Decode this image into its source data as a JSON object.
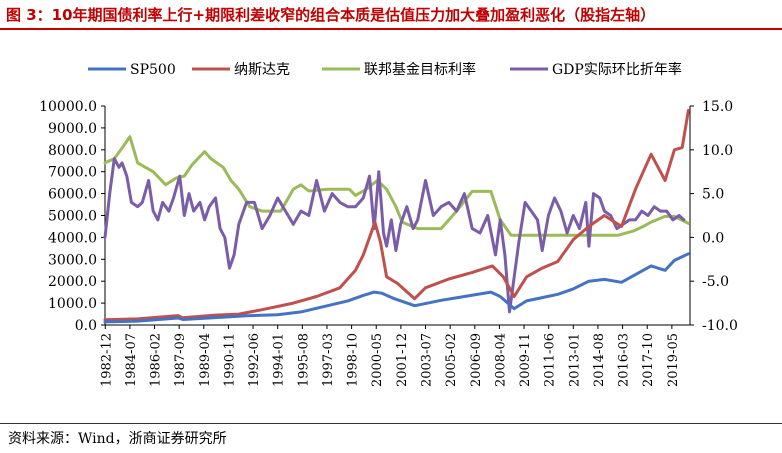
{
  "header": {
    "title": "图 3：10年期国债利率上行+期限利差收窄的组合本质是估值压力加大叠加盈利恶化（股指左轴）"
  },
  "footer": {
    "source": "资料来源：Wind，浙商证券研究所"
  },
  "colors": {
    "sp500": "#4472c4",
    "nasdaq": "#c0504d",
    "fedfunds": "#9bbb59",
    "gdp": "#7b5ca8",
    "title": "#c00000"
  },
  "chart_data": {
    "type": "line",
    "title": "10年期国债利率上行+期限利差收窄的组合本质是估值压力加大叠加盈利恶化（股指左轴）",
    "legend_position": "top",
    "x_tick_labels": [
      "1982-12",
      "1984-07",
      "1986-02",
      "1987-09",
      "1989-04",
      "1990-11",
      "1992-06",
      "1994-01",
      "1995-08",
      "1997-03",
      "1998-10",
      "2000-05",
      "2001-12",
      "2003-07",
      "2005-02",
      "2006-09",
      "2008-04",
      "2009-11",
      "2011-06",
      "2013-01",
      "2014-08",
      "2016-03",
      "2017-10",
      "2019-05"
    ],
    "x_range": [
      1982.9,
      2020.5
    ],
    "y_left": {
      "min": 0,
      "max": 10000,
      "ticks": [
        "0.0",
        "1000.0",
        "2000.0",
        "3000.0",
        "4000.0",
        "5000.0",
        "6000.0",
        "7000.0",
        "8000.0",
        "9000.0",
        "10000.0"
      ]
    },
    "y_right": {
      "min": -10,
      "max": 15,
      "ticks": [
        "-10.0",
        "-5.0",
        "0.0",
        "5.0",
        "10.0",
        "15.0"
      ]
    },
    "series": [
      {
        "name": "SP500",
        "color": "#4472c4",
        "axis": "left",
        "x": [
          1982.9,
          1985,
          1987.6,
          1987.9,
          1990,
          1992,
          1994,
          1995.5,
          1997,
          1998.5,
          1999.5,
          2000.2,
          2000.7,
          2001.5,
          2002.8,
          2003.3,
          2004.5,
          2006,
          2007.7,
          2008.3,
          2009.2,
          2010,
          2011,
          2012,
          2013,
          2014,
          2015,
          2016.1,
          2017,
          2018,
          2018.9,
          2019.5,
          2020.4
        ],
        "y": [
          140,
          180,
          320,
          250,
          340,
          420,
          470,
          600,
          850,
          1100,
          1350,
          1500,
          1450,
          1200,
          880,
          950,
          1130,
          1300,
          1500,
          1300,
          750,
          1100,
          1250,
          1400,
          1650,
          2000,
          2080,
          1950,
          2300,
          2700,
          2500,
          2950,
          3250
        ]
      },
      {
        "name": "纳斯达克",
        "color": "#c0504d",
        "axis": "left",
        "x": [
          1982.9,
          1985,
          1987.6,
          1987.9,
          1990,
          1991.5,
          1993,
          1995,
          1996.5,
          1998,
          1999,
          1999.5,
          2000.0,
          2000.25,
          2000.6,
          2001,
          2001.7,
          2002.8,
          2003.5,
          2005,
          2006.5,
          2007.8,
          2008.5,
          2009.2,
          2010,
          2011,
          2012,
          2013,
          2014,
          2015,
          2016.1,
          2017,
          2018,
          2018.9,
          2019.5,
          2020.0,
          2020.4
        ],
        "y": [
          240,
          280,
          430,
          330,
          450,
          500,
          700,
          1000,
          1300,
          1700,
          2500,
          3200,
          4200,
          4700,
          3800,
          2200,
          1900,
          1200,
          1700,
          2100,
          2400,
          2700,
          2200,
          1300,
          2200,
          2600,
          2900,
          3900,
          4500,
          5000,
          4500,
          6200,
          7800,
          6600,
          8000,
          8100,
          9800
        ]
      },
      {
        "name": "联邦基金目标利率",
        "color": "#9bbb59",
        "axis": "right",
        "x": [
          1982.9,
          1983.5,
          1984,
          1984.5,
          1985,
          1986,
          1986.8,
          1987.5,
          1988,
          1988.5,
          1989.3,
          1989.7,
          1990.5,
          1991,
          1991.5,
          1992.2,
          1993,
          1994.2,
          1995,
          1995.5,
          1996,
          1997.2,
          1998.6,
          1999,
          1999.7,
          2000.4,
          2001,
          2001.6,
          2002,
          2003,
          2004.5,
          2005.5,
          2006.5,
          2007.7,
          2008.3,
          2009,
          2015.9,
          2016.9,
          2017.5,
          2018,
          2018.9,
          2019.5,
          2020.4
        ],
        "y": [
          8.5,
          9.0,
          10.2,
          11.5,
          8.5,
          7.5,
          6.0,
          6.8,
          7.0,
          8.3,
          9.8,
          9.0,
          8.0,
          6.5,
          5.5,
          3.5,
          3.0,
          3.0,
          5.5,
          6.0,
          5.3,
          5.5,
          5.5,
          4.8,
          5.5,
          6.5,
          5.5,
          3.5,
          1.75,
          1.0,
          1.0,
          3.0,
          5.25,
          5.25,
          2.0,
          0.25,
          0.25,
          0.75,
          1.25,
          1.75,
          2.4,
          2.4,
          1.6
        ]
      },
      {
        "name": "GDP实际环比折年率",
        "color": "#7b5ca8",
        "axis": "right",
        "x": [
          1982.9,
          1983.2,
          1983.5,
          1983.8,
          1984.0,
          1984.3,
          1984.6,
          1985.0,
          1985.3,
          1985.7,
          1986.0,
          1986.3,
          1986.6,
          1987.0,
          1987.3,
          1987.7,
          1988.0,
          1988.3,
          1988.6,
          1989.0,
          1989.3,
          1989.6,
          1990.0,
          1990.3,
          1990.6,
          1990.9,
          1991.2,
          1991.5,
          1992.0,
          1992.5,
          1993.0,
          1993.5,
          1994.0,
          1994.5,
          1995.0,
          1995.5,
          1996.0,
          1996.5,
          1997.0,
          1997.5,
          1998.0,
          1998.5,
          1999.0,
          1999.5,
          1999.9,
          2000.2,
          2000.5,
          2000.8,
          2001.0,
          2001.3,
          2001.6,
          2001.9,
          2002.3,
          2002.7,
          2003.0,
          2003.5,
          2004.0,
          2004.5,
          2005.0,
          2005.5,
          2006.0,
          2006.5,
          2007.0,
          2007.5,
          2008.0,
          2008.3,
          2008.6,
          2008.9,
          2009.2,
          2009.5,
          2009.9,
          2010.3,
          2010.7,
          2011.0,
          2011.4,
          2011.8,
          2012.2,
          2012.6,
          2013.0,
          2013.4,
          2013.8,
          2014.0,
          2014.3,
          2014.7,
          2015.0,
          2015.4,
          2015.8,
          2016.2,
          2016.6,
          2017.0,
          2017.4,
          2017.8,
          2018.2,
          2018.6,
          2019.0,
          2019.4,
          2019.8,
          2020.1
        ],
        "y": [
          0.0,
          5.0,
          9.0,
          8.0,
          8.5,
          7.0,
          4.0,
          3.5,
          4.0,
          6.5,
          3.0,
          2.0,
          4.0,
          3.0,
          4.5,
          7.0,
          2.5,
          5.0,
          3.0,
          4.0,
          2.0,
          3.5,
          4.5,
          1.0,
          0.0,
          -3.5,
          -2.0,
          1.5,
          4.0,
          4.0,
          1.0,
          2.5,
          4.5,
          3.0,
          1.5,
          3.0,
          2.5,
          6.5,
          3.0,
          5.0,
          4.0,
          3.5,
          3.5,
          4.5,
          7.0,
          1.0,
          7.5,
          0.5,
          -1.0,
          2.0,
          -1.5,
          1.5,
          3.5,
          1.0,
          2.0,
          6.5,
          2.5,
          3.5,
          4.0,
          3.0,
          5.0,
          1.0,
          0.5,
          2.5,
          -2.0,
          2.0,
          -2.0,
          -8.5,
          -4.5,
          -0.5,
          4.0,
          3.0,
          2.0,
          -1.5,
          2.5,
          4.5,
          3.0,
          0.5,
          2.5,
          1.0,
          4.0,
          -1.0,
          5.0,
          4.5,
          3.0,
          2.5,
          1.0,
          1.5,
          2.0,
          2.0,
          3.0,
          2.5,
          3.5,
          3.0,
          3.0,
          2.0,
          2.5,
          2.0
        ]
      }
    ]
  }
}
